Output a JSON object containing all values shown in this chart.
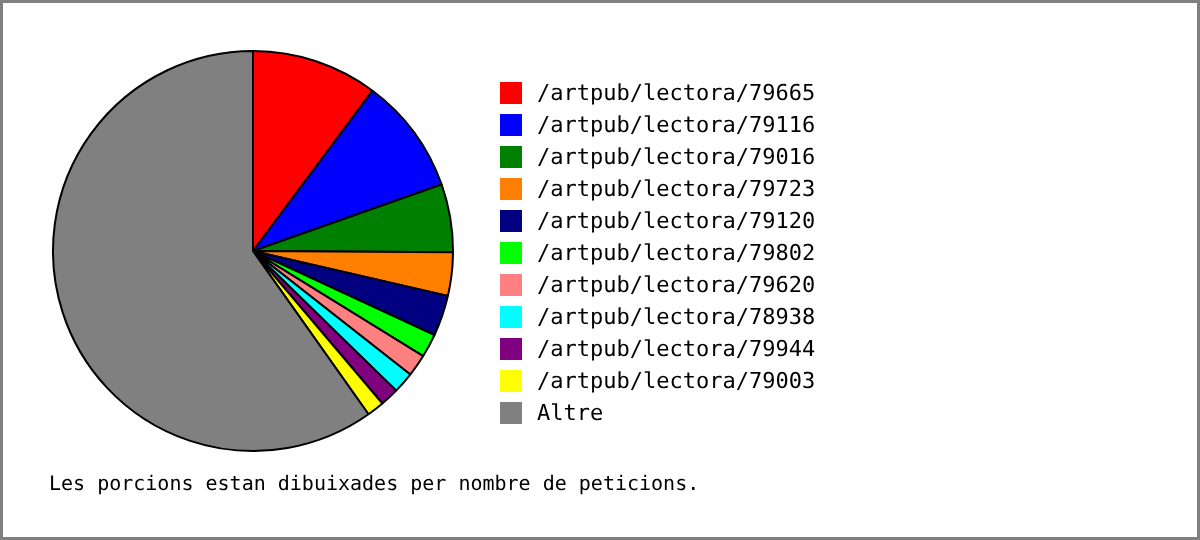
{
  "chart_data": {
    "type": "pie",
    "categories": [
      "/artpub/lectora/79665",
      "/artpub/lectora/79116",
      "/artpub/lectora/79016",
      "/artpub/lectora/79723",
      "/artpub/lectora/79120",
      "/artpub/lectora/79802",
      "/artpub/lectora/79620",
      "/artpub/lectora/78938",
      "/artpub/lectora/79944",
      "/artpub/lectora/79003",
      "Altre"
    ],
    "values": [
      10.2,
      9.4,
      5.5,
      3.5,
      3.3,
      1.9,
      1.8,
      1.7,
      1.5,
      1.4,
      59.8
    ],
    "colors": [
      "#ff0000",
      "#0000ff",
      "#008000",
      "#ff8000",
      "#000080",
      "#00ff00",
      "#ff8080",
      "#00ffff",
      "#800080",
      "#ffff00",
      "#808080"
    ],
    "legend": "right",
    "annotations": [
      "Les porcions estan dibuixades per nombre de peticions."
    ]
  }
}
